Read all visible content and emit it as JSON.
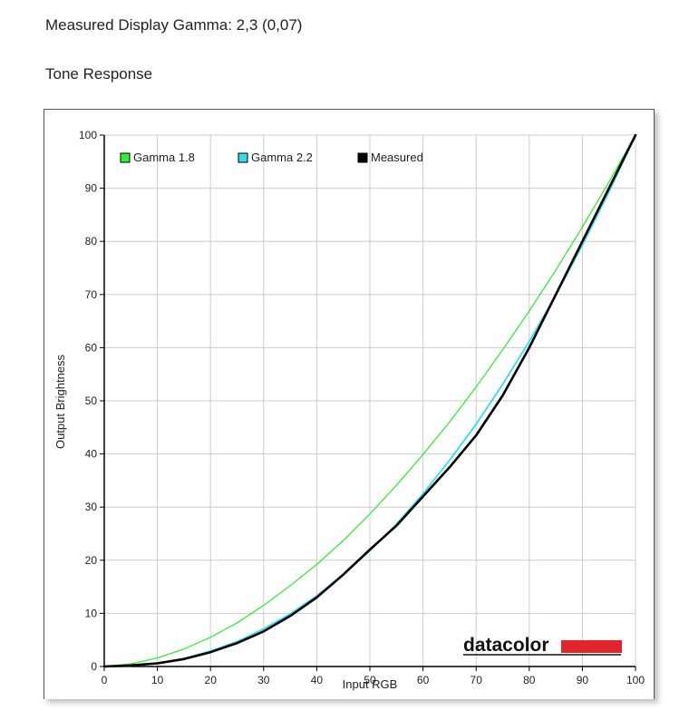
{
  "heading": {
    "measured": "Measured Display Gamma: 2,3 (0,07)",
    "section": "Tone Response"
  },
  "logo": {
    "text": "datacolor",
    "bar_color": "#e0262c"
  },
  "chart_data": {
    "type": "line",
    "xlabel": "Input RGB",
    "ylabel": "Output Brightness",
    "xlim": [
      0,
      100
    ],
    "ylim": [
      0,
      100
    ],
    "xticks": [
      0,
      10,
      20,
      30,
      40,
      50,
      60,
      70,
      80,
      90,
      100
    ],
    "yticks": [
      0,
      10,
      20,
      30,
      40,
      50,
      60,
      70,
      80,
      90,
      100
    ],
    "grid": true,
    "legend_position": "top-left",
    "series": [
      {
        "name": "Gamma 1.8",
        "color": "#33ee33",
        "x": [
          0,
          5,
          10,
          15,
          20,
          25,
          30,
          35,
          40,
          45,
          50,
          55,
          60,
          65,
          70,
          75,
          80,
          85,
          90,
          95,
          100
        ],
        "y": [
          0,
          0.5,
          1.6,
          3.3,
          5.5,
          8.2,
          11.5,
          15.2,
          19.2,
          23.7,
          28.7,
          34.1,
          39.9,
          46.0,
          52.6,
          59.6,
          66.9,
          74.6,
          82.7,
          91.2,
          100
        ]
      },
      {
        "name": "Gamma 2.2",
        "color": "#33ddee",
        "x": [
          0,
          5,
          10,
          15,
          20,
          25,
          30,
          35,
          40,
          45,
          50,
          55,
          60,
          65,
          70,
          75,
          80,
          85,
          90,
          95,
          100
        ],
        "y": [
          0,
          0.1,
          0.6,
          1.5,
          2.9,
          4.7,
          7.1,
          9.9,
          13.3,
          17.3,
          21.8,
          26.8,
          32.5,
          38.8,
          45.6,
          53.1,
          61.2,
          69.9,
          79.3,
          89.3,
          100
        ]
      },
      {
        "name": "Measured",
        "color": "#000000",
        "x": [
          0,
          5,
          10,
          15,
          20,
          25,
          30,
          35,
          40,
          45,
          50,
          55,
          60,
          65,
          70,
          75,
          80,
          85,
          90,
          95,
          100
        ],
        "y": [
          0,
          0.2,
          0.6,
          1.4,
          2.7,
          4.4,
          6.6,
          9.5,
          13.0,
          17.3,
          22.0,
          26.5,
          32.0,
          37.5,
          43.5,
          51.0,
          60.0,
          70.0,
          80.0,
          90.0,
          100
        ]
      }
    ]
  }
}
